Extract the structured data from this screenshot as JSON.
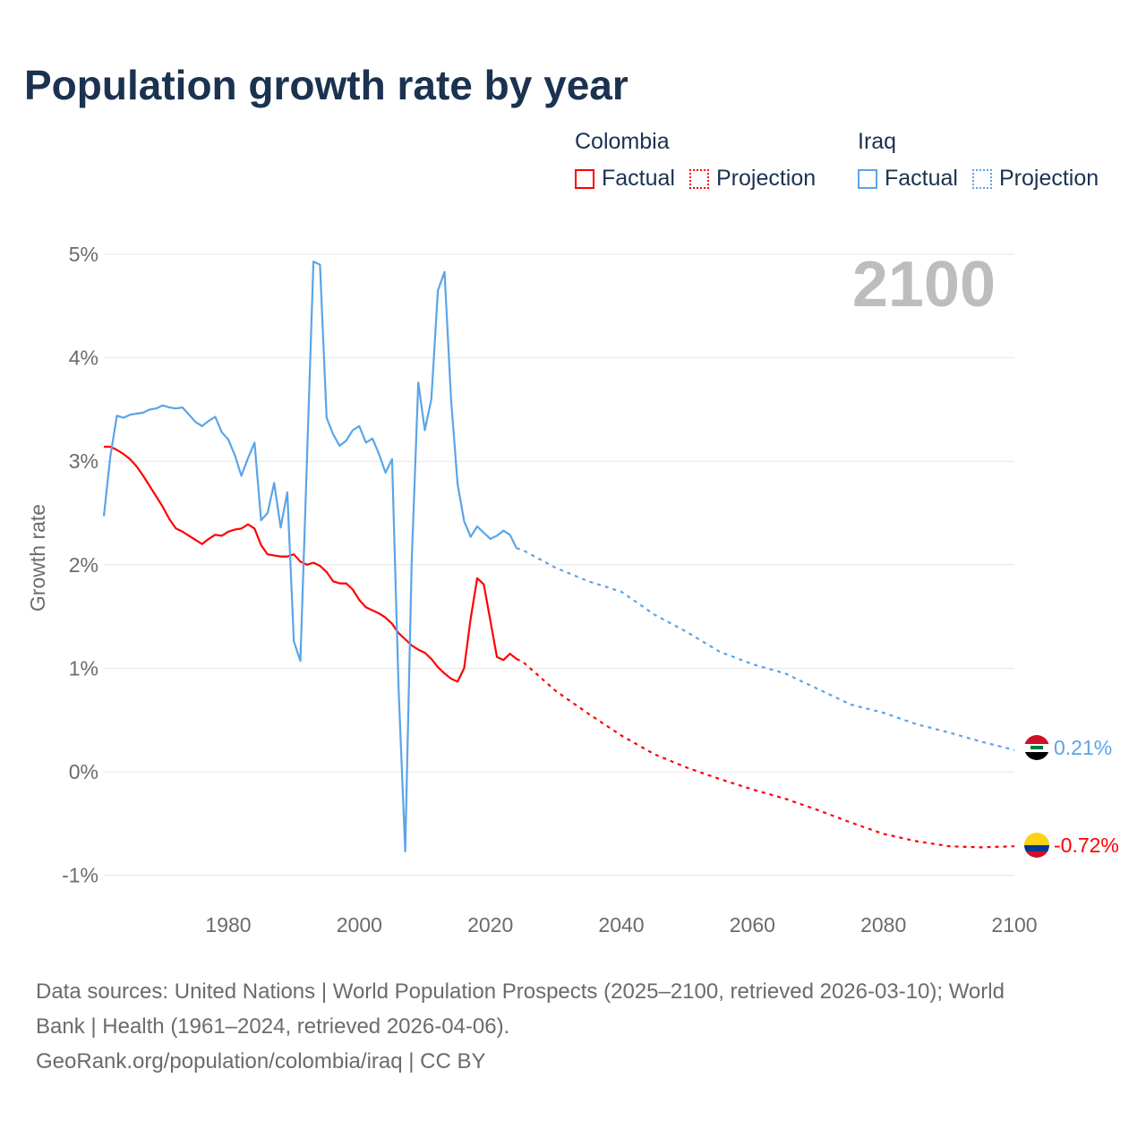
{
  "title": "Population growth rate by year",
  "legend": {
    "groups": [
      {
        "name": "Colombia",
        "factual": "Factual",
        "projection": "Projection",
        "color": "#ff0000"
      },
      {
        "name": "Iraq",
        "factual": "Factual",
        "projection": "Projection",
        "color": "#5ba4e8"
      }
    ]
  },
  "year_label": "2100",
  "footer": {
    "line1": "Data sources: United Nations | World Population Prospects (2025–2100, retrieved 2026-03-10); World",
    "line2": "Bank | Health (1961–2024, retrieved 2026-04-06).",
    "line3": "GeoRank.org/population/colombia/iraq | CC BY"
  },
  "chart_data": {
    "type": "line",
    "title": "Population growth rate by year",
    "xlabel": "",
    "ylabel": "Growth rate",
    "xlim": [
      1961,
      2100
    ],
    "ylim": [
      -1.1,
      5
    ],
    "grid": true,
    "x_ticks": [
      1980,
      2000,
      2020,
      2040,
      2060,
      2080,
      2100
    ],
    "y_ticks": [
      {
        "v": -1,
        "label": "-1%"
      },
      {
        "v": 0,
        "label": "0%"
      },
      {
        "v": 1,
        "label": "1%"
      },
      {
        "v": 2,
        "label": "2%"
      },
      {
        "v": 3,
        "label": "3%"
      },
      {
        "v": 4,
        "label": "4%"
      },
      {
        "v": 5,
        "label": "5%"
      }
    ],
    "series": [
      {
        "name": "Colombia",
        "color": "#ff0000",
        "end_label": "-0.72%",
        "factual": {
          "start_year": 1961,
          "values": [
            3.14,
            3.14,
            3.11,
            3.07,
            3.02,
            2.95,
            2.86,
            2.76,
            2.66,
            2.56,
            2.44,
            2.35,
            2.32,
            2.28,
            2.24,
            2.2,
            2.25,
            2.29,
            2.28,
            2.32,
            2.34,
            2.35,
            2.39,
            2.35,
            2.19,
            2.1,
            2.09,
            2.08,
            2.08,
            2.1,
            2.03,
            2.0,
            2.02,
            1.99,
            1.93,
            1.84,
            1.82,
            1.82,
            1.76,
            1.66,
            1.59,
            1.56,
            1.53,
            1.49,
            1.43,
            1.34,
            1.28,
            1.22,
            1.18,
            1.15,
            1.09,
            1.01,
            0.95,
            0.9,
            0.87,
            1.0,
            1.48,
            1.87,
            1.81,
            1.46,
            1.11,
            1.08,
            1.14,
            1.09
          ]
        },
        "projection": {
          "years": [
            2024,
            2025,
            2030,
            2035,
            2040,
            2045,
            2050,
            2055,
            2060,
            2065,
            2070,
            2075,
            2080,
            2085,
            2090,
            2095,
            2100
          ],
          "values": [
            1.09,
            1.06,
            0.78,
            0.56,
            0.35,
            0.17,
            0.04,
            -0.07,
            -0.17,
            -0.26,
            -0.37,
            -0.49,
            -0.6,
            -0.67,
            -0.72,
            -0.73,
            -0.72
          ]
        }
      },
      {
        "name": "Iraq",
        "color": "#5ba4e8",
        "end_label": "0.21%",
        "factual": {
          "start_year": 1961,
          "values": [
            2.47,
            3.05,
            3.44,
            3.42,
            3.45,
            3.46,
            3.47,
            3.5,
            3.51,
            3.54,
            3.52,
            3.51,
            3.52,
            3.45,
            3.38,
            3.34,
            3.39,
            3.43,
            3.28,
            3.21,
            3.06,
            2.86,
            3.03,
            3.18,
            2.43,
            2.5,
            2.79,
            2.36,
            2.7,
            1.26,
            1.07,
            3.0,
            4.93,
            4.9,
            3.42,
            3.26,
            3.15,
            3.2,
            3.3,
            3.34,
            3.18,
            3.22,
            3.07,
            2.89,
            3.02,
            0.8,
            -0.77,
            2.05,
            3.76,
            3.3,
            3.6,
            4.65,
            4.83,
            3.6,
            2.78,
            2.42,
            2.27,
            2.37,
            2.31,
            2.25,
            2.28,
            2.33,
            2.29,
            2.16
          ]
        },
        "projection": {
          "years": [
            2024,
            2025,
            2030,
            2035,
            2040,
            2045,
            2050,
            2055,
            2060,
            2065,
            2070,
            2075,
            2080,
            2085,
            2090,
            2095,
            2100
          ],
          "values": [
            2.16,
            2.14,
            1.97,
            1.84,
            1.74,
            1.52,
            1.35,
            1.16,
            1.04,
            0.95,
            0.8,
            0.65,
            0.57,
            0.46,
            0.38,
            0.29,
            0.21
          ]
        }
      }
    ]
  }
}
